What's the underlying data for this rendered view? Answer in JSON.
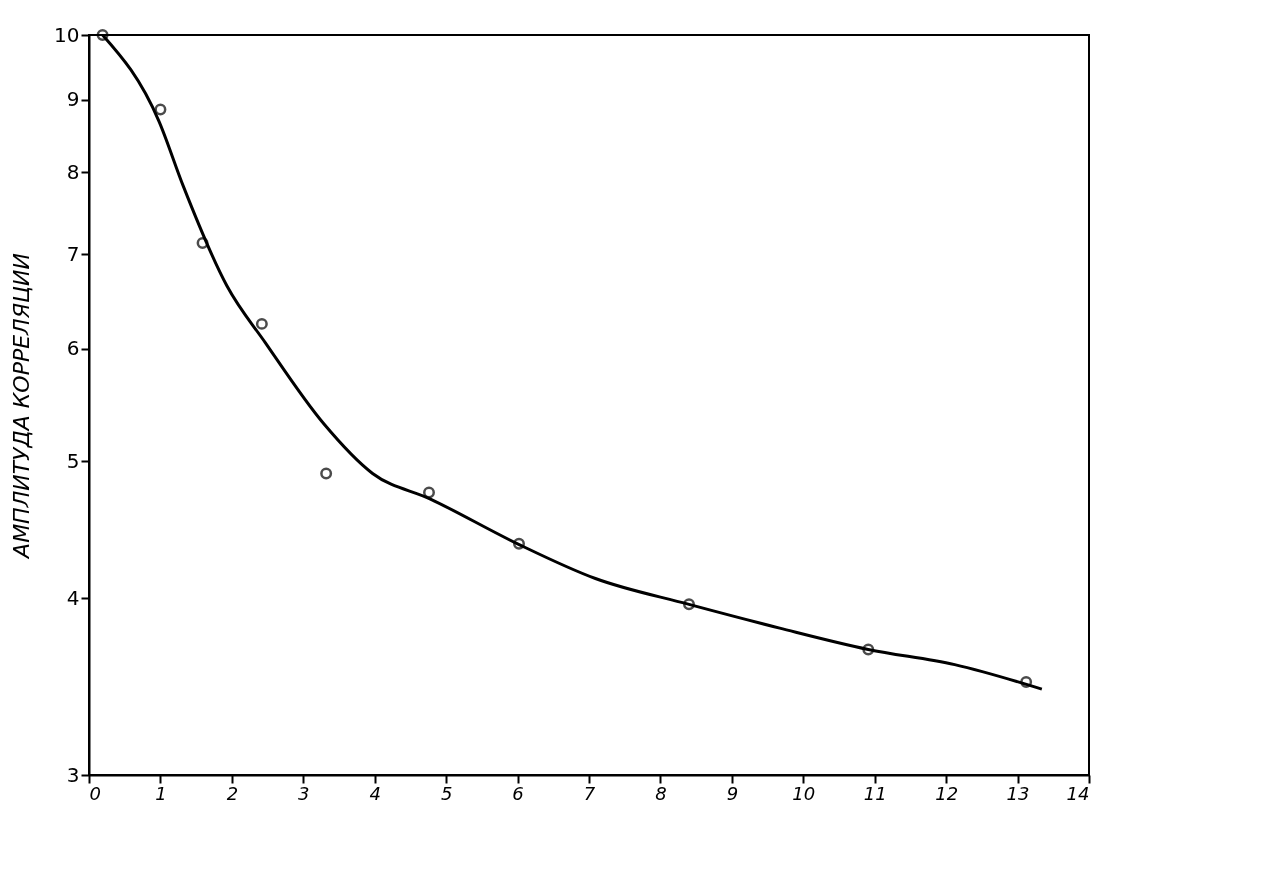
{
  "chart_data": {
    "type": "scatter",
    "ylabel": "АМПЛИТУДА КОРРЕЛЯЦИИ",
    "log": "y",
    "xlim": [
      0,
      14
    ],
    "xticks": [
      0,
      1,
      2,
      3,
      4,
      5,
      6,
      7,
      8,
      9,
      10,
      11,
      12,
      13,
      14
    ],
    "ylim": [
      3,
      10
    ],
    "yticks": [
      3,
      4,
      5,
      6,
      7,
      8,
      9,
      10
    ],
    "grid": false,
    "series": [
      {
        "color": "#000000",
        "marker": "circle",
        "x": [
          0.19,
          1.0,
          1.59,
          2.42,
          3.32,
          4.76,
          6.02,
          8.4,
          10.91,
          13.12
        ],
        "values": [
          10,
          8.86,
          7.13,
          6.25,
          4.9,
          4.75,
          4.37,
          3.96,
          3.68,
          3.49
        ]
      },
      {
        "type": "line",
        "color": "#000000",
        "line_style": "solid",
        "x": [
          0.19,
          0.98,
          1.32,
          1.93,
          2.47,
          3.29,
          3.97,
          4.78,
          6.0,
          7.09,
          8.4,
          9.67,
          10.91,
          12.12,
          13.34
        ],
        "values": [
          10,
          8.69,
          7.82,
          6.65,
          6.06,
          5.31,
          4.9,
          4.7,
          4.37,
          4.13,
          3.96,
          3.81,
          3.68,
          3.59,
          3.45
        ]
      }
    ]
  }
}
